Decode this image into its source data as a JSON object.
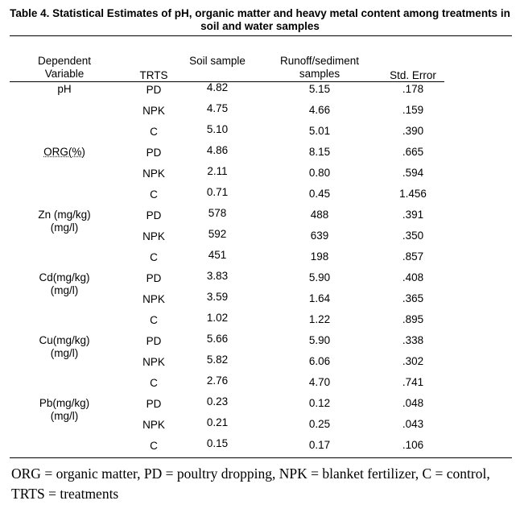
{
  "title": "Table 4. Statistical Estimates of pH, organic matter and heavy metal content among treatments in soil and water samples",
  "headers": {
    "dependent_variable": "Dependent Variable",
    "trts": "TRTS",
    "soil_sample": "Soil sample",
    "runoff_samples": "Runoff/sediment samples",
    "std_error": "Std. Error"
  },
  "groups": [
    {
      "variable": "pH",
      "unit": "",
      "rows": [
        {
          "trts": "PD",
          "soil": "4.82",
          "runoff": "5.15",
          "err": ".178"
        },
        {
          "trts": "NPK",
          "soil": "4.75",
          "runoff": "4.66",
          "err": ".159"
        },
        {
          "trts": "C",
          "soil": "5.10",
          "runoff": "5.01",
          "err": ".390"
        }
      ]
    },
    {
      "variable": "ORG(%)",
      "unit": "",
      "rows": [
        {
          "trts": "PD",
          "soil": "4.86",
          "runoff": "8.15",
          "err": ".665"
        },
        {
          "trts": "NPK",
          "soil": "2.11",
          "runoff": "0.80",
          "err": ".594"
        },
        {
          "trts": "C",
          "soil": "0.71",
          "runoff": "0.45",
          "err": "1.456"
        }
      ]
    },
    {
      "variable": "Zn (mg/kg)",
      "unit": "(mg/l)",
      "rows": [
        {
          "trts": "PD",
          "soil": "578",
          "runoff": "488",
          "err": ".391"
        },
        {
          "trts": "NPK",
          "soil": "592",
          "runoff": "639",
          "err": ".350"
        },
        {
          "trts": "C",
          "soil": "451",
          "runoff": "198",
          "err": ".857"
        }
      ]
    },
    {
      "variable": "Cd(mg/kg)",
      "unit": "(mg/l)",
      "rows": [
        {
          "trts": "PD",
          "soil": "3.83",
          "runoff": "5.90",
          "err": ".408"
        },
        {
          "trts": "NPK",
          "soil": "3.59",
          "runoff": "1.64",
          "err": ".365"
        },
        {
          "trts": "C",
          "soil": "1.02",
          "runoff": "1.22",
          "err": ".895"
        }
      ]
    },
    {
      "variable": "Cu(mg/kg)",
      "unit": "(mg/l)",
      "rows": [
        {
          "trts": "PD",
          "soil": "5.66",
          "runoff": "5.90",
          "err": ".338"
        },
        {
          "trts": "NPK",
          "soil": "5.82",
          "runoff": "6.06",
          "err": ".302"
        },
        {
          "trts": "C",
          "soil": "2.76",
          "runoff": "4.70",
          "err": ".741"
        }
      ]
    },
    {
      "variable": "Pb(mg/kg)",
      "unit": "(mg/l)",
      "rows": [
        {
          "trts": "PD",
          "soil": "0.23",
          "runoff": "0.12",
          "err": ".048"
        },
        {
          "trts": "NPK",
          "soil": "0.21",
          "runoff": "0.25",
          "err": ".043"
        },
        {
          "trts": "C",
          "soil": "0.15",
          "runoff": "0.17",
          "err": ".106"
        }
      ]
    }
  ],
  "footnote": "ORG = organic matter, PD = poultry dropping, NPK = blanket fertilizer, C = control, TRTS = treatments"
}
